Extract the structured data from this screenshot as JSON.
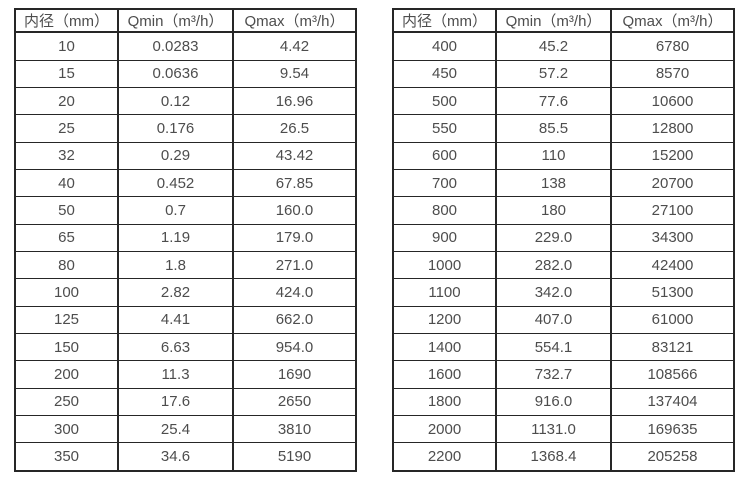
{
  "columns": [
    {
      "key": "diameter",
      "label": "内径（mm）"
    },
    {
      "key": "qmin",
      "label": "Qmin（m³/h）"
    },
    {
      "key": "qmax",
      "label": "Qmax（m³/h）"
    }
  ],
  "tables": [
    {
      "name": "small-diameter-table",
      "rows": [
        [
          "10",
          "0.0283",
          "4.42"
        ],
        [
          "15",
          "0.0636",
          "9.54"
        ],
        [
          "20",
          "0.12",
          "16.96"
        ],
        [
          "25",
          "0.176",
          "26.5"
        ],
        [
          "32",
          "0.29",
          "43.42"
        ],
        [
          "40",
          "0.452",
          "67.85"
        ],
        [
          "50",
          "0.7",
          "160.0"
        ],
        [
          "65",
          "1.19",
          "179.0"
        ],
        [
          "80",
          "1.8",
          "271.0"
        ],
        [
          "100",
          "2.82",
          "424.0"
        ],
        [
          "125",
          "4.41",
          "662.0"
        ],
        [
          "150",
          "6.63",
          "954.0"
        ],
        [
          "200",
          "11.3",
          "1690"
        ],
        [
          "250",
          "17.6",
          "2650"
        ],
        [
          "300",
          "25.4",
          "3810"
        ],
        [
          "350",
          "34.6",
          "5190"
        ]
      ]
    },
    {
      "name": "large-diameter-table",
      "rows": [
        [
          "400",
          "45.2",
          "6780"
        ],
        [
          "450",
          "57.2",
          "8570"
        ],
        [
          "500",
          "77.6",
          "10600"
        ],
        [
          "550",
          "85.5",
          "12800"
        ],
        [
          "600",
          "110",
          "15200"
        ],
        [
          "700",
          "138",
          "20700"
        ],
        [
          "800",
          "180",
          "27100"
        ],
        [
          "900",
          "229.0",
          "34300"
        ],
        [
          "1000",
          "282.0",
          "42400"
        ],
        [
          "1100",
          "342.0",
          "51300"
        ],
        [
          "1200",
          "407.0",
          "61000"
        ],
        [
          "1400",
          "554.1",
          "83121"
        ],
        [
          "1600",
          "732.7",
          "108566"
        ],
        [
          "1800",
          "916.0",
          "137404"
        ],
        [
          "2000",
          "1131.0",
          "169635"
        ],
        [
          "2200",
          "1368.4",
          "205258"
        ]
      ]
    }
  ],
  "colors": {
    "border": "#262626",
    "text": "#4d4d4d",
    "background": "#ffffff"
  }
}
